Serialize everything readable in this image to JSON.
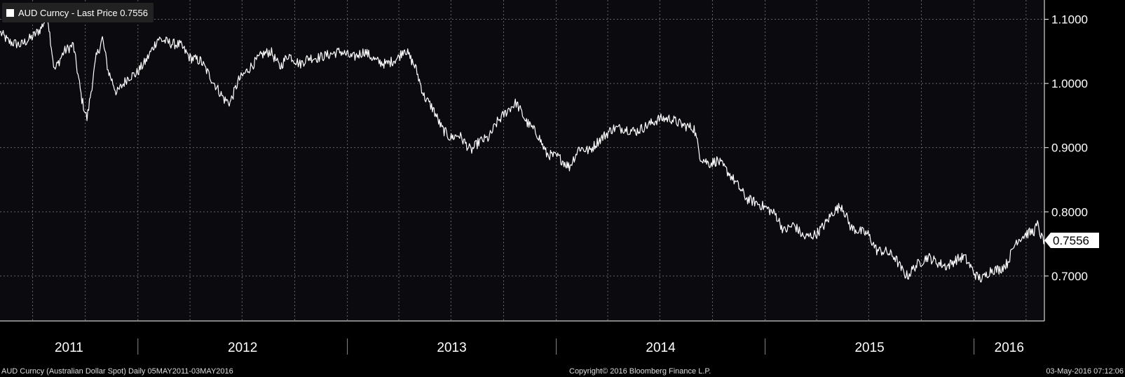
{
  "legend": {
    "label": "AUD Curncy - Last Price 0.7556"
  },
  "footer": {
    "left": "AUD Curncy (Australian Dollar Spot)  Daily 05MAY2011-03MAY2016",
    "center": "Copyright© 2016 Bloomberg Finance L.P.",
    "right": "03-May-2016 07:12:06"
  },
  "colors": {
    "background": "#000000",
    "grid": "#666666",
    "line": "#ffffff",
    "last_marker": "#ff5a1e"
  },
  "chart_data": {
    "type": "line",
    "title": "",
    "xlabel": "",
    "ylabel": "",
    "ylim": [
      0.63,
      1.13
    ],
    "xlim": [
      "2011-05-05",
      "2016-05-03"
    ],
    "y_ticks": [
      "1.1000",
      "1.0000",
      "0.9000",
      "0.8000",
      "0.7000"
    ],
    "x_tick_labels": [
      "2011",
      "2012",
      "2013",
      "2014",
      "2015",
      "2016"
    ],
    "last_price_label": "0.7556",
    "grid": true,
    "legend_position": "top-left",
    "series": [
      {
        "name": "AUD Curncy - Last Price",
        "x": [
          "2011-05-05",
          "2011-05-20",
          "2011-06-10",
          "2011-06-30",
          "2011-07-15",
          "2011-07-27",
          "2011-08-08",
          "2011-08-25",
          "2011-09-10",
          "2011-09-25",
          "2011-10-04",
          "2011-10-20",
          "2011-10-31",
          "2011-11-10",
          "2011-11-25",
          "2011-12-15",
          "2011-12-29",
          "2012-01-15",
          "2012-02-05",
          "2012-02-29",
          "2012-03-15",
          "2012-04-01",
          "2012-04-20",
          "2012-05-10",
          "2012-05-31",
          "2012-06-10",
          "2012-06-25",
          "2012-07-15",
          "2012-08-05",
          "2012-08-20",
          "2012-09-05",
          "2012-09-20",
          "2012-10-10",
          "2012-10-25",
          "2012-11-10",
          "2012-11-30",
          "2012-12-20",
          "2013-01-10",
          "2013-01-31",
          "2013-02-20",
          "2013-03-10",
          "2013-03-31",
          "2013-04-11",
          "2013-04-30",
          "2013-05-15",
          "2013-05-31",
          "2013-06-15",
          "2013-06-30",
          "2013-07-15",
          "2013-08-05",
          "2013-08-20",
          "2013-09-05",
          "2013-09-20",
          "2013-10-10",
          "2013-10-23",
          "2013-11-10",
          "2013-11-30",
          "2013-12-15",
          "2014-01-05",
          "2014-01-24",
          "2014-02-10",
          "2014-02-28",
          "2014-03-15",
          "2014-04-10",
          "2014-04-30",
          "2014-05-20",
          "2014-06-10",
          "2014-06-30",
          "2014-07-20",
          "2014-08-10",
          "2014-08-30",
          "2014-09-10",
          "2014-09-25",
          "2014-10-10",
          "2014-10-30",
          "2014-11-15",
          "2014-11-30",
          "2014-12-15",
          "2015-01-05",
          "2015-01-20",
          "2015-02-03",
          "2015-02-20",
          "2015-03-10",
          "2015-03-31",
          "2015-04-15",
          "2015-04-30",
          "2015-05-15",
          "2015-05-31",
          "2015-06-15",
          "2015-06-30",
          "2015-07-15",
          "2015-07-31",
          "2015-08-15",
          "2015-08-31",
          "2015-09-07",
          "2015-09-20",
          "2015-10-12",
          "2015-10-31",
          "2015-11-15",
          "2015-11-30",
          "2015-12-15",
          "2016-01-05",
          "2016-01-15",
          "2016-01-31",
          "2016-02-15",
          "2016-02-28",
          "2016-03-15",
          "2016-03-31",
          "2016-04-15",
          "2016-04-21",
          "2016-04-28",
          "2016-05-03"
        ],
        "y": [
          1.08,
          1.065,
          1.06,
          1.072,
          1.085,
          1.106,
          1.02,
          1.05,
          1.06,
          0.975,
          0.945,
          1.04,
          1.07,
          1.02,
          0.985,
          1.01,
          1.015,
          1.035,
          1.07,
          1.062,
          1.06,
          1.04,
          1.035,
          1.005,
          0.975,
          0.97,
          1.005,
          1.025,
          1.045,
          1.05,
          1.025,
          1.045,
          1.03,
          1.04,
          1.04,
          1.045,
          1.05,
          1.04,
          1.05,
          1.035,
          1.03,
          1.04,
          1.055,
          1.025,
          0.98,
          0.96,
          0.93,
          0.915,
          0.92,
          0.895,
          0.91,
          0.915,
          0.94,
          0.96,
          0.97,
          0.94,
          0.92,
          0.89,
          0.885,
          0.87,
          0.9,
          0.895,
          0.91,
          0.93,
          0.93,
          0.925,
          0.935,
          0.945,
          0.945,
          0.935,
          0.93,
          0.885,
          0.875,
          0.88,
          0.86,
          0.84,
          0.82,
          0.815,
          0.805,
          0.795,
          0.77,
          0.78,
          0.76,
          0.765,
          0.78,
          0.8,
          0.81,
          0.775,
          0.77,
          0.765,
          0.74,
          0.738,
          0.73,
          0.705,
          0.7,
          0.715,
          0.73,
          0.72,
          0.715,
          0.725,
          0.73,
          0.7,
          0.695,
          0.71,
          0.71,
          0.72,
          0.755,
          0.765,
          0.77,
          0.78,
          0.76,
          0.7556
        ]
      }
    ]
  }
}
